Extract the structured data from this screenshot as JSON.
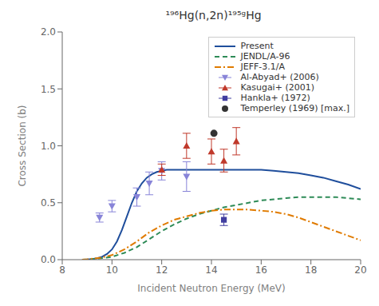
{
  "chart_data": {
    "type": "line",
    "title": "¹⁹⁶Hg(n,2n)¹⁹⁵ᵍHg",
    "xlabel": "Incident Neutron Energy (MeV)",
    "ylabel": "Cross Section (b)",
    "xlim": [
      8,
      20
    ],
    "ylim": [
      0.0,
      2.0
    ],
    "xticks": [
      8,
      10,
      12,
      14,
      16,
      18,
      20
    ],
    "yticks": [
      {
        "value": 0.0,
        "label": "0.0"
      },
      0.5,
      {
        "value": 1.0,
        "label": "1.0"
      },
      1.5,
      {
        "value": 2.0,
        "label": "2.0"
      }
    ],
    "grid": false,
    "legend": "upper right",
    "series": [
      {
        "name": "Present",
        "type": "line",
        "color": "#1f4e9c",
        "line_style": "solid",
        "x": [
          8.8,
          9.0,
          9.2,
          9.4,
          9.6,
          9.8,
          10.0,
          10.2,
          10.4,
          10.6,
          10.8,
          11.0,
          11.2,
          11.4,
          11.6,
          11.8,
          12.0,
          12.2,
          12.5,
          13.0,
          13.5,
          14.0,
          14.5,
          15.0,
          15.5,
          16.0,
          16.5,
          17.0,
          17.5,
          18.0,
          18.5,
          19.0,
          19.5,
          20.0
        ],
        "values": [
          0.0,
          0.002,
          0.005,
          0.012,
          0.025,
          0.05,
          0.09,
          0.16,
          0.26,
          0.38,
          0.5,
          0.6,
          0.67,
          0.72,
          0.75,
          0.77,
          0.78,
          0.79,
          0.79,
          0.79,
          0.79,
          0.79,
          0.79,
          0.79,
          0.79,
          0.79,
          0.78,
          0.77,
          0.76,
          0.74,
          0.72,
          0.69,
          0.66,
          0.62
        ]
      },
      {
        "name": "JENDL/A-96",
        "type": "line",
        "color": "#2e8b57",
        "line_style": "dashed",
        "x": [
          8.8,
          9.0,
          9.5,
          10.0,
          10.5,
          11.0,
          11.5,
          12.0,
          12.5,
          13.0,
          13.5,
          14.0,
          14.5,
          15.0,
          15.5,
          16.0,
          16.5,
          17.0,
          17.5,
          18.0,
          18.5,
          19.0,
          19.5,
          20.0
        ],
        "values": [
          0.0,
          0.002,
          0.01,
          0.025,
          0.06,
          0.11,
          0.18,
          0.25,
          0.31,
          0.36,
          0.4,
          0.43,
          0.46,
          0.48,
          0.5,
          0.52,
          0.53,
          0.54,
          0.55,
          0.55,
          0.55,
          0.55,
          0.54,
          0.53
        ]
      },
      {
        "name": "JEFF-3.1/A",
        "type": "line",
        "color": "#e07b00",
        "line_style": "dashdot",
        "x": [
          8.8,
          9.0,
          9.5,
          10.0,
          10.5,
          11.0,
          11.5,
          12.0,
          12.5,
          13.0,
          13.5,
          14.0,
          14.5,
          15.0,
          15.5,
          16.0,
          16.5,
          17.0,
          17.5,
          18.0,
          18.5,
          19.0,
          19.5,
          20.0
        ],
        "values": [
          0.0,
          0.003,
          0.015,
          0.04,
          0.09,
          0.16,
          0.24,
          0.3,
          0.35,
          0.38,
          0.41,
          0.43,
          0.44,
          0.44,
          0.44,
          0.43,
          0.42,
          0.4,
          0.37,
          0.33,
          0.29,
          0.25,
          0.21,
          0.17
        ]
      },
      {
        "name": "Al-Abyad+ (2006)",
        "type": "scatter",
        "color": "#8884d8",
        "marker": "triangle-down",
        "x": [
          9.5,
          10.0,
          11.0,
          11.5,
          12.0,
          13.0
        ],
        "values": [
          0.37,
          0.47,
          0.55,
          0.67,
          0.78,
          0.73
        ],
        "error_low": [
          0.04,
          0.05,
          0.08,
          0.1,
          0.08,
          0.13
        ],
        "error_high": [
          0.04,
          0.05,
          0.08,
          0.1,
          0.08,
          0.13
        ]
      },
      {
        "name": "Kasugai+ (2001)",
        "type": "scatter",
        "color": "#c0392b",
        "marker": "triangle-up",
        "x": [
          12.0,
          13.0,
          14.0,
          14.5,
          15.0
        ],
        "values": [
          0.79,
          1.0,
          0.95,
          0.87,
          1.04
        ],
        "error_low": [
          0.05,
          0.11,
          0.11,
          0.1,
          0.12
        ],
        "error_high": [
          0.05,
          0.11,
          0.11,
          0.1,
          0.12
        ]
      },
      {
        "name": "Hankla+ (1972)",
        "type": "scatter",
        "color": "#413ea0",
        "marker": "square",
        "x": [
          14.5
        ],
        "values": [
          0.35
        ],
        "error_low": [
          0.05
        ],
        "error_high": [
          0.05
        ]
      },
      {
        "name": "Temperley (1969) [max.]",
        "type": "scatter",
        "color": "#333333",
        "marker": "circle",
        "x": [
          14.1
        ],
        "values": [
          1.11
        ]
      }
    ]
  }
}
